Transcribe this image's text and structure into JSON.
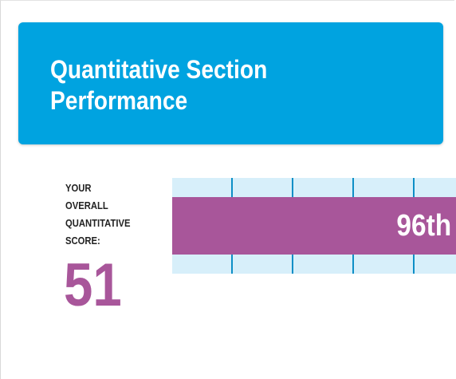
{
  "header": {
    "title": "Quantitative Section Performance"
  },
  "score": {
    "label_lines": [
      "YOUR",
      "OVERALL",
      "QUANTITATIVE",
      "SCORE:"
    ],
    "value": "51"
  },
  "percentile": {
    "label": "96th",
    "value": 96
  },
  "colors": {
    "header_bg": "#00a3e0",
    "score_color": "#a8569a",
    "bar_color": "#a8569a",
    "track_bg": "#d7effa",
    "tick_color": "#0d8fc7"
  }
}
